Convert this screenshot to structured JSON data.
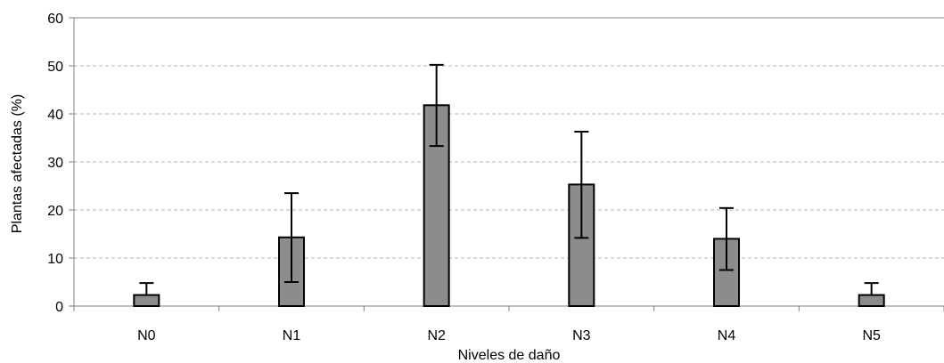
{
  "chart_data": {
    "type": "bar",
    "title": "",
    "xlabel": "Niveles de daño",
    "ylabel": "Plantas afectadas (%)",
    "categories": [
      "N0",
      "N1",
      "N2",
      "N3",
      "N4",
      "N5"
    ],
    "values": [
      2.3,
      14.3,
      41.8,
      25.3,
      14.0,
      2.3
    ],
    "error_upper": [
      4.8,
      23.5,
      50.2,
      36.3,
      20.4,
      4.8
    ],
    "error_lower": [
      null,
      5.0,
      33.3,
      14.2,
      7.5,
      null
    ],
    "ylim": [
      0,
      60
    ],
    "yticks": [
      0,
      10,
      20,
      30,
      40,
      50,
      60
    ],
    "grid": "horizontal dashed",
    "legend": "none",
    "colors": {
      "bar_fill": "#8c8c8c",
      "bar_stroke": "#000000",
      "grid": "#b4b4b4",
      "axis": "#808080"
    }
  }
}
